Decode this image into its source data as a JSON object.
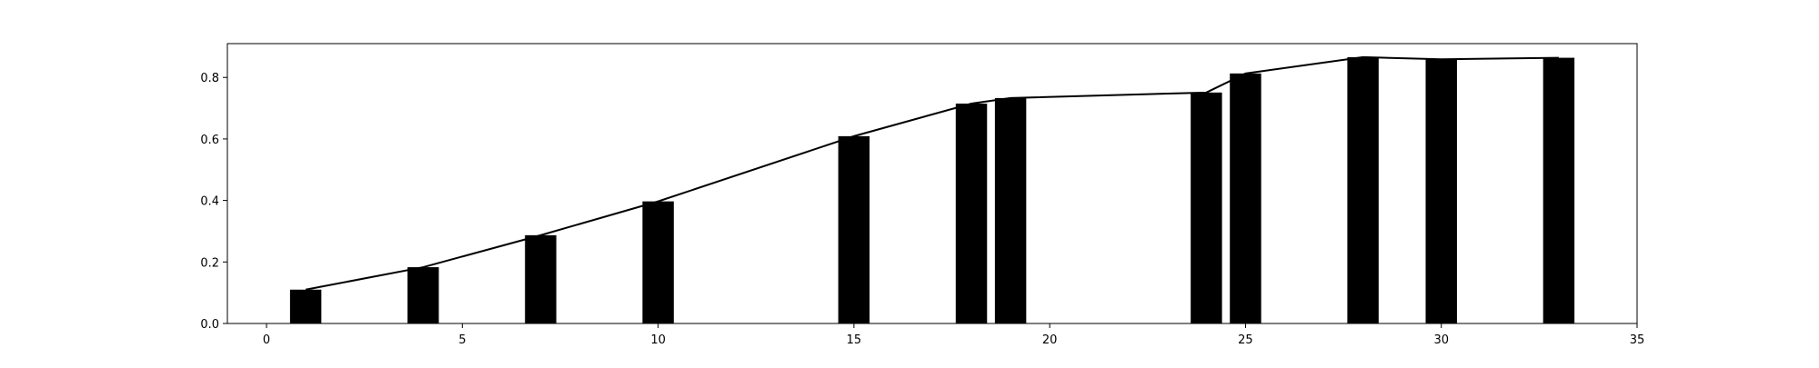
{
  "chart_data": {
    "type": "bar",
    "title": "",
    "xlabel": "",
    "ylabel": "",
    "xlim": [
      -1,
      35
    ],
    "ylim": [
      0,
      0.91
    ],
    "xticks": [
      0,
      5,
      10,
      15,
      20,
      25,
      30,
      35
    ],
    "xtick_labels": [
      "0",
      "5",
      "10",
      "15",
      "20",
      "25",
      "30",
      "35"
    ],
    "yticks": [
      0.0,
      0.2,
      0.4,
      0.6,
      0.8
    ],
    "ytick_labels": [
      "0.0",
      "0.2",
      "0.4",
      "0.6",
      "0.8"
    ],
    "grid": false,
    "series": [
      {
        "type": "bar",
        "x": [
          1,
          4,
          7,
          10,
          15,
          18,
          19,
          24,
          25,
          28,
          30,
          33
        ],
        "values": [
          0.11,
          0.183,
          0.287,
          0.397,
          0.609,
          0.715,
          0.733,
          0.751,
          0.813,
          0.866,
          0.859,
          0.864
        ],
        "bar_width": 0.8,
        "color": "#000000"
      },
      {
        "type": "line",
        "x": [
          1,
          4,
          7,
          10,
          15,
          18,
          19,
          24,
          25,
          28,
          30,
          33
        ],
        "values": [
          0.11,
          0.183,
          0.287,
          0.397,
          0.609,
          0.715,
          0.733,
          0.751,
          0.813,
          0.866,
          0.859,
          0.864
        ],
        "color": "#000000"
      }
    ]
  }
}
